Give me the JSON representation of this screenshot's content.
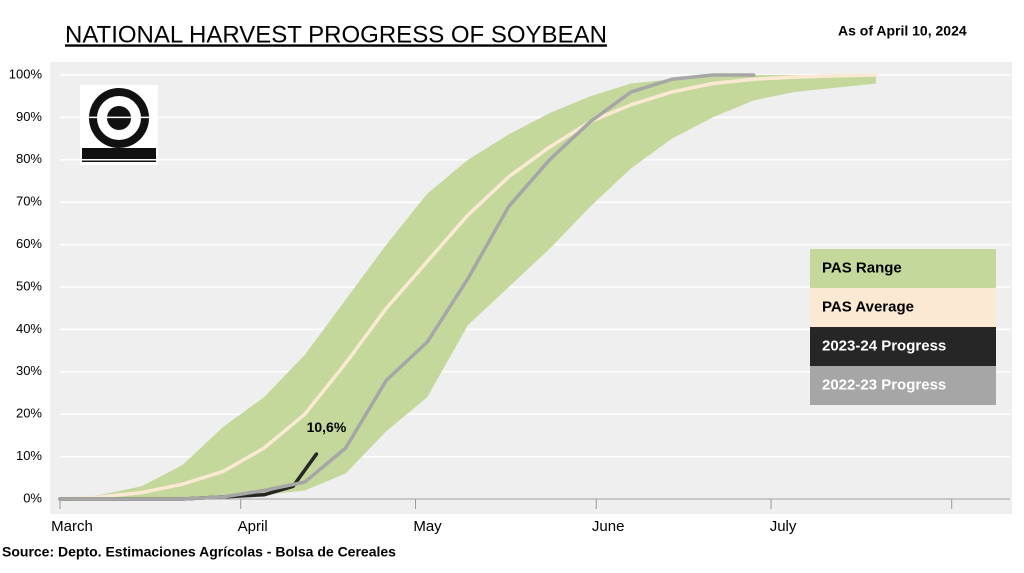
{
  "chart_data": {
    "type": "line",
    "title": "NATIONAL HARVEST PROGRESS OF SOYBEAN",
    "subtitle": "As of April 10, 2024",
    "source": "Source: Depto. Estimaciones Agrícolas - Bolsa de Cereales",
    "xlim": [
      0,
      163
    ],
    "xticks": [
      {
        "value": 0,
        "label": "March"
      },
      {
        "value": 31,
        "label": "April"
      },
      {
        "value": 61,
        "label": "May"
      },
      {
        "value": 92,
        "label": "June"
      },
      {
        "value": 122,
        "label": "July"
      },
      {
        "value": 153,
        "label": null
      }
    ],
    "ylim": [
      0,
      100
    ],
    "yticks": [
      {
        "value": 0,
        "label": "0%"
      },
      {
        "value": 10,
        "label": "10%"
      },
      {
        "value": 20,
        "label": "20%"
      },
      {
        "value": 30,
        "label": "30%"
      },
      {
        "value": 40,
        "label": "40%"
      },
      {
        "value": 50,
        "label": "50%"
      },
      {
        "value": 60,
        "label": "60%"
      },
      {
        "value": 70,
        "label": "70%"
      },
      {
        "value": 80,
        "label": "80%"
      },
      {
        "value": 90,
        "label": "90%"
      },
      {
        "value": 100,
        "label": "100%"
      }
    ],
    "grid": true,
    "legend": "right",
    "series": [
      {
        "name": "PAS Range",
        "kind": "range",
        "color": "#c4d89c",
        "x": [
          0,
          7,
          14,
          21,
          28,
          35,
          42,
          49,
          56,
          63,
          70,
          77,
          84,
          91,
          98,
          105,
          112,
          119,
          126,
          133,
          140
        ],
        "values": [
          0,
          1,
          3,
          8,
          17,
          24,
          34,
          47,
          60,
          72,
          80,
          86,
          91,
          95,
          98,
          99,
          100,
          100,
          100,
          100,
          100
        ],
        "lower": [
          0,
          0,
          0,
          0,
          0,
          1,
          2,
          6,
          16,
          24,
          41,
          50,
          59,
          69,
          78,
          85,
          90,
          94,
          96,
          97,
          98
        ]
      },
      {
        "name": "PAS Average",
        "kind": "line",
        "color": "#fbe9d4",
        "x": [
          0,
          7,
          14,
          21,
          28,
          35,
          42,
          49,
          56,
          63,
          70,
          77,
          84,
          91,
          98,
          105,
          112,
          119,
          126,
          133,
          140
        ],
        "values": [
          0,
          0.5,
          1.5,
          3.5,
          6.5,
          12,
          20,
          32,
          45,
          56,
          67,
          76,
          83,
          89,
          93,
          96,
          98,
          99,
          99.5,
          99.8,
          100
        ]
      },
      {
        "name": "2023-24 Progress",
        "kind": "line",
        "color": "#262626",
        "x": [
          0,
          7,
          14,
          21,
          28,
          35,
          40,
          44
        ],
        "values": [
          0,
          0,
          0,
          0,
          0.5,
          1,
          3,
          10.6
        ],
        "value_labels": [
          null,
          null,
          null,
          null,
          null,
          null,
          null,
          "10,6%"
        ]
      },
      {
        "name": "2022-23 Progress",
        "kind": "line",
        "color": "#a6a6a6",
        "x": [
          0,
          7,
          14,
          21,
          28,
          35,
          42,
          49,
          56,
          63,
          70,
          77,
          84,
          91,
          98,
          105,
          112,
          119
        ],
        "values": [
          0,
          0,
          0,
          0,
          0.5,
          2,
          4,
          12,
          28,
          37,
          52,
          69,
          80,
          89,
          96,
          99,
          100,
          100
        ]
      }
    ]
  }
}
